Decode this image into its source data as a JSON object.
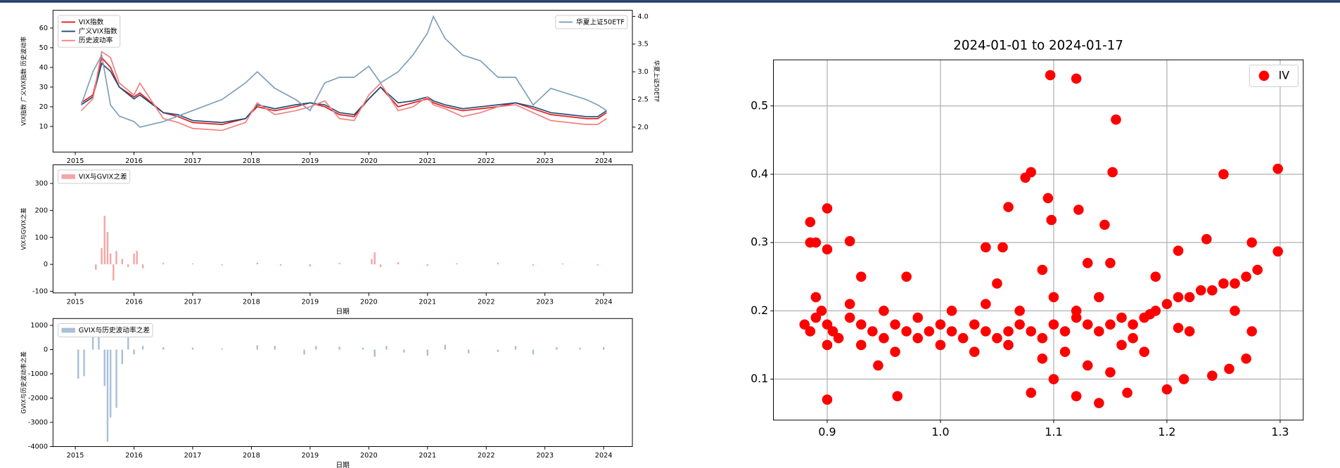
{
  "chart_data": [
    {
      "type": "line",
      "x": [
        2015.1,
        2015.3,
        2015.45,
        2015.6,
        2015.75,
        2016.0,
        2016.1,
        2016.5,
        2016.75,
        2017.0,
        2017.5,
        2017.9,
        2018.1,
        2018.4,
        2018.75,
        2019.0,
        2019.25,
        2019.5,
        2019.75,
        2020.0,
        2020.2,
        2020.5,
        2020.75,
        2021.0,
        2021.1,
        2021.3,
        2021.6,
        2021.9,
        2022.2,
        2022.5,
        2022.8,
        2023.1,
        2023.4,
        2023.7,
        2023.9,
        2024.05
      ],
      "series": [
        {
          "name": "VIX指数",
          "color": "#e41a1c",
          "values": [
            22,
            26,
            45,
            40,
            30,
            25,
            27,
            17,
            15,
            12,
            11,
            14,
            20,
            18,
            20,
            22,
            20,
            16,
            15,
            24,
            30,
            20,
            22,
            24,
            22,
            20,
            18,
            19,
            20,
            22,
            19,
            16,
            15,
            14,
            14,
            17
          ]
        },
        {
          "name": "广义VIX指数",
          "color": "#1f4e79",
          "values": [
            21,
            25,
            42,
            38,
            30,
            24,
            26,
            17,
            16,
            13,
            12,
            14,
            21,
            19,
            21,
            22,
            21,
            17,
            16,
            24,
            30,
            22,
            23,
            25,
            23,
            21,
            19,
            20,
            21,
            22,
            20,
            17,
            16,
            15,
            15,
            18
          ]
        },
        {
          "name": "历史波动率",
          "color": "#f28080",
          "values": [
            18,
            24,
            48,
            45,
            32,
            26,
            32,
            14,
            12,
            9,
            8,
            12,
            22,
            16,
            18,
            20,
            23,
            14,
            13,
            26,
            32,
            18,
            20,
            25,
            21,
            19,
            15,
            17,
            20,
            21,
            17,
            13,
            12,
            11,
            11,
            14
          ]
        },
        {
          "name": "华夏上证50ETF",
          "color": "#7f9fba",
          "axis": "y2",
          "values": [
            2.4,
            3.0,
            3.3,
            2.4,
            2.2,
            2.1,
            2.0,
            2.1,
            2.2,
            2.3,
            2.5,
            2.8,
            3.0,
            2.7,
            2.5,
            2.3,
            2.8,
            2.9,
            2.9,
            3.1,
            2.8,
            3.0,
            3.3,
            3.7,
            4.0,
            3.6,
            3.3,
            3.2,
            2.9,
            2.9,
            2.4,
            2.7,
            2.6,
            2.5,
            2.4,
            2.3
          ]
        }
      ],
      "xlim": [
        2014.62,
        2024.49
      ],
      "xticks": [
        2015,
        2016,
        2017,
        2018,
        2019,
        2020,
        2021,
        2022,
        2023,
        2024
      ],
      "ylim": [
        -3,
        69
      ],
      "yticks": [
        10,
        20,
        30,
        40,
        50,
        60
      ],
      "y2lim": [
        1.55,
        4.11
      ],
      "y2ticks": [
        {
          "value": 2,
          "label": "2.0"
        },
        2.5,
        {
          "value": 3,
          "label": "3.0"
        },
        3.5,
        {
          "value": 4,
          "label": "4.0"
        }
      ],
      "ylabel": "VIX指数  广义VIX指数  历史波动率",
      "y2label": "华夏上证50ETF",
      "legend": "upper left",
      "legend2": "upper right"
    },
    {
      "type": "bar",
      "x": [
        2015.35,
        2015.45,
        2015.5,
        2015.55,
        2015.6,
        2015.65,
        2015.7,
        2015.8,
        2015.9,
        2016.0,
        2016.05,
        2016.15,
        2016.5,
        2017.0,
        2017.5,
        2018.1,
        2018.5,
        2019.0,
        2019.5,
        2020.05,
        2020.1,
        2020.2,
        2020.5,
        2021.0,
        2021.5,
        2022.2,
        2022.8,
        2023.3,
        2023.9
      ],
      "series": [
        {
          "name": "VIX与GVIX之差",
          "color": "#f4a6a6",
          "values": [
            -20,
            60,
            180,
            120,
            40,
            -60,
            50,
            20,
            -10,
            40,
            50,
            -15,
            5,
            3,
            -4,
            6,
            -5,
            -8,
            5,
            20,
            45,
            -10,
            8,
            -6,
            4,
            6,
            -5,
            3,
            -4
          ]
        }
      ],
      "xlim": [
        2014.62,
        2024.49
      ],
      "xticks": [
        2015,
        2016,
        2017,
        2018,
        2019,
        2020,
        2021,
        2022,
        2023,
        2024
      ],
      "ylim": [
        -106,
        369
      ],
      "yticks": [
        -100,
        0,
        100,
        200,
        300
      ],
      "xlabel": "日期",
      "ylabel": "VIX与GVIX之差",
      "legend": "upper left"
    },
    {
      "type": "bar",
      "x": [
        2015.05,
        2015.15,
        2015.3,
        2015.4,
        2015.5,
        2015.55,
        2015.6,
        2015.7,
        2015.8,
        2015.9,
        2016.0,
        2016.15,
        2016.5,
        2017.0,
        2017.5,
        2018.1,
        2018.4,
        2018.9,
        2019.1,
        2019.5,
        2019.9,
        2020.1,
        2020.3,
        2020.6,
        2021.0,
        2021.3,
        2021.7,
        2022.2,
        2022.5,
        2022.8,
        2023.2,
        2023.6,
        2024.0
      ],
      "series": [
        {
          "name": "GVIX与历史波动率之差",
          "color": "#a9c0d6",
          "values": [
            -1200,
            -1100,
            600,
            600,
            -1500,
            -3800,
            -2800,
            -2400,
            -600,
            500,
            -200,
            150,
            100,
            80,
            50,
            180,
            150,
            -200,
            150,
            120,
            80,
            -300,
            150,
            -120,
            -250,
            200,
            -150,
            -100,
            150,
            -200,
            100,
            80,
            100
          ]
        }
      ],
      "xlim": [
        2014.62,
        2024.49
      ],
      "xticks": [
        2015,
        2016,
        2017,
        2018,
        2019,
        2020,
        2021,
        2022,
        2023,
        2024
      ],
      "ylim": [
        -4000,
        1282
      ],
      "yticks": [
        -4000,
        -3000,
        -2000,
        -1000,
        0,
        1000
      ],
      "xlabel": "日期",
      "ylabel": "GVIX与历史波动率之差",
      "legend": "upper left"
    },
    {
      "type": "scatter",
      "title": "2024-01-01 to 2024-01-17",
      "x": [
        0.88,
        0.885,
        0.89,
        0.895,
        0.9,
        0.905,
        0.91,
        0.92,
        0.93,
        0.94,
        0.95,
        0.96,
        0.97,
        0.98,
        0.99,
        1.0,
        1.01,
        1.02,
        1.03,
        1.04,
        1.05,
        1.06,
        1.07,
        1.08,
        1.09,
        1.1,
        1.11,
        1.12,
        1.13,
        1.14,
        1.15,
        1.16,
        1.17,
        1.18,
        1.19,
        1.2,
        1.21,
        1.22,
        1.23,
        1.24,
        1.25,
        1.26,
        1.27,
        1.28,
        0.89,
        0.9,
        0.92,
        0.95,
        0.98,
        1.01,
        1.04,
        1.07,
        1.1,
        1.12,
        1.14,
        1.16,
        1.18,
        1.22,
        1.26,
        0.93,
        0.96,
        1.0,
        1.03,
        1.06,
        1.09,
        1.11,
        1.13,
        1.15,
        1.17,
        0.885,
        0.89,
        0.885,
        0.9,
        0.9,
        0.9,
        0.962,
        1.097,
        1.12,
        1.155,
        1.152,
        1.08,
        1.075,
        1.095,
        1.122,
        1.06,
        1.145,
        1.098,
        1.25,
        1.298,
        1.298,
        1.21,
        1.235,
        1.275,
        0.92,
        1.04,
        1.055,
        1.12,
        1.14,
        1.165,
        1.2,
        1.24,
        1.27,
        1.08,
        1.1,
        0.945,
        1.215,
        1.255,
        1.275,
        1.21,
        1.185,
        0.93,
        0.97,
        1.05,
        1.09,
        1.13,
        1.15,
        1.19
      ],
      "series": [
        {
          "name": "IV",
          "color": "#ff0000",
          "values": [
            0.18,
            0.17,
            0.19,
            0.2,
            0.18,
            0.17,
            0.16,
            0.19,
            0.18,
            0.17,
            0.16,
            0.18,
            0.17,
            0.16,
            0.17,
            0.18,
            0.17,
            0.16,
            0.18,
            0.17,
            0.16,
            0.17,
            0.18,
            0.17,
            0.16,
            0.18,
            0.17,
            0.19,
            0.18,
            0.17,
            0.18,
            0.19,
            0.18,
            0.19,
            0.2,
            0.21,
            0.22,
            0.22,
            0.23,
            0.23,
            0.24,
            0.24,
            0.25,
            0.26,
            0.22,
            0.15,
            0.21,
            0.2,
            0.19,
            0.2,
            0.21,
            0.2,
            0.22,
            0.2,
            0.22,
            0.15,
            0.14,
            0.17,
            0.2,
            0.15,
            0.14,
            0.15,
            0.14,
            0.15,
            0.13,
            0.14,
            0.12,
            0.11,
            0.16,
            0.3,
            0.3,
            0.33,
            0.35,
            0.29,
            0.07,
            0.075,
            0.545,
            0.54,
            0.48,
            0.403,
            0.403,
            0.395,
            0.365,
            0.348,
            0.352,
            0.326,
            0.333,
            0.4,
            0.408,
            0.287,
            0.288,
            0.305,
            0.3,
            0.302,
            0.293,
            0.293,
            0.075,
            0.065,
            0.08,
            0.085,
            0.105,
            0.13,
            0.08,
            0.1,
            0.12,
            0.1,
            0.115,
            0.17,
            0.175,
            0.195,
            0.25,
            0.25,
            0.24,
            0.26,
            0.27,
            0.27,
            0.25
          ]
        }
      ],
      "xlim": [
        0.8525,
        1.3204
      ],
      "xticks": [
        0.9,
        {
          "value": 1,
          "label": "1.0"
        },
        1.1,
        1.2,
        1.3
      ],
      "ylim": [
        0.04,
        0.5675
      ],
      "yticks": [
        0.1,
        0.2,
        0.3,
        0.4,
        0.5
      ],
      "grid": true,
      "legend": "upper right"
    }
  ]
}
